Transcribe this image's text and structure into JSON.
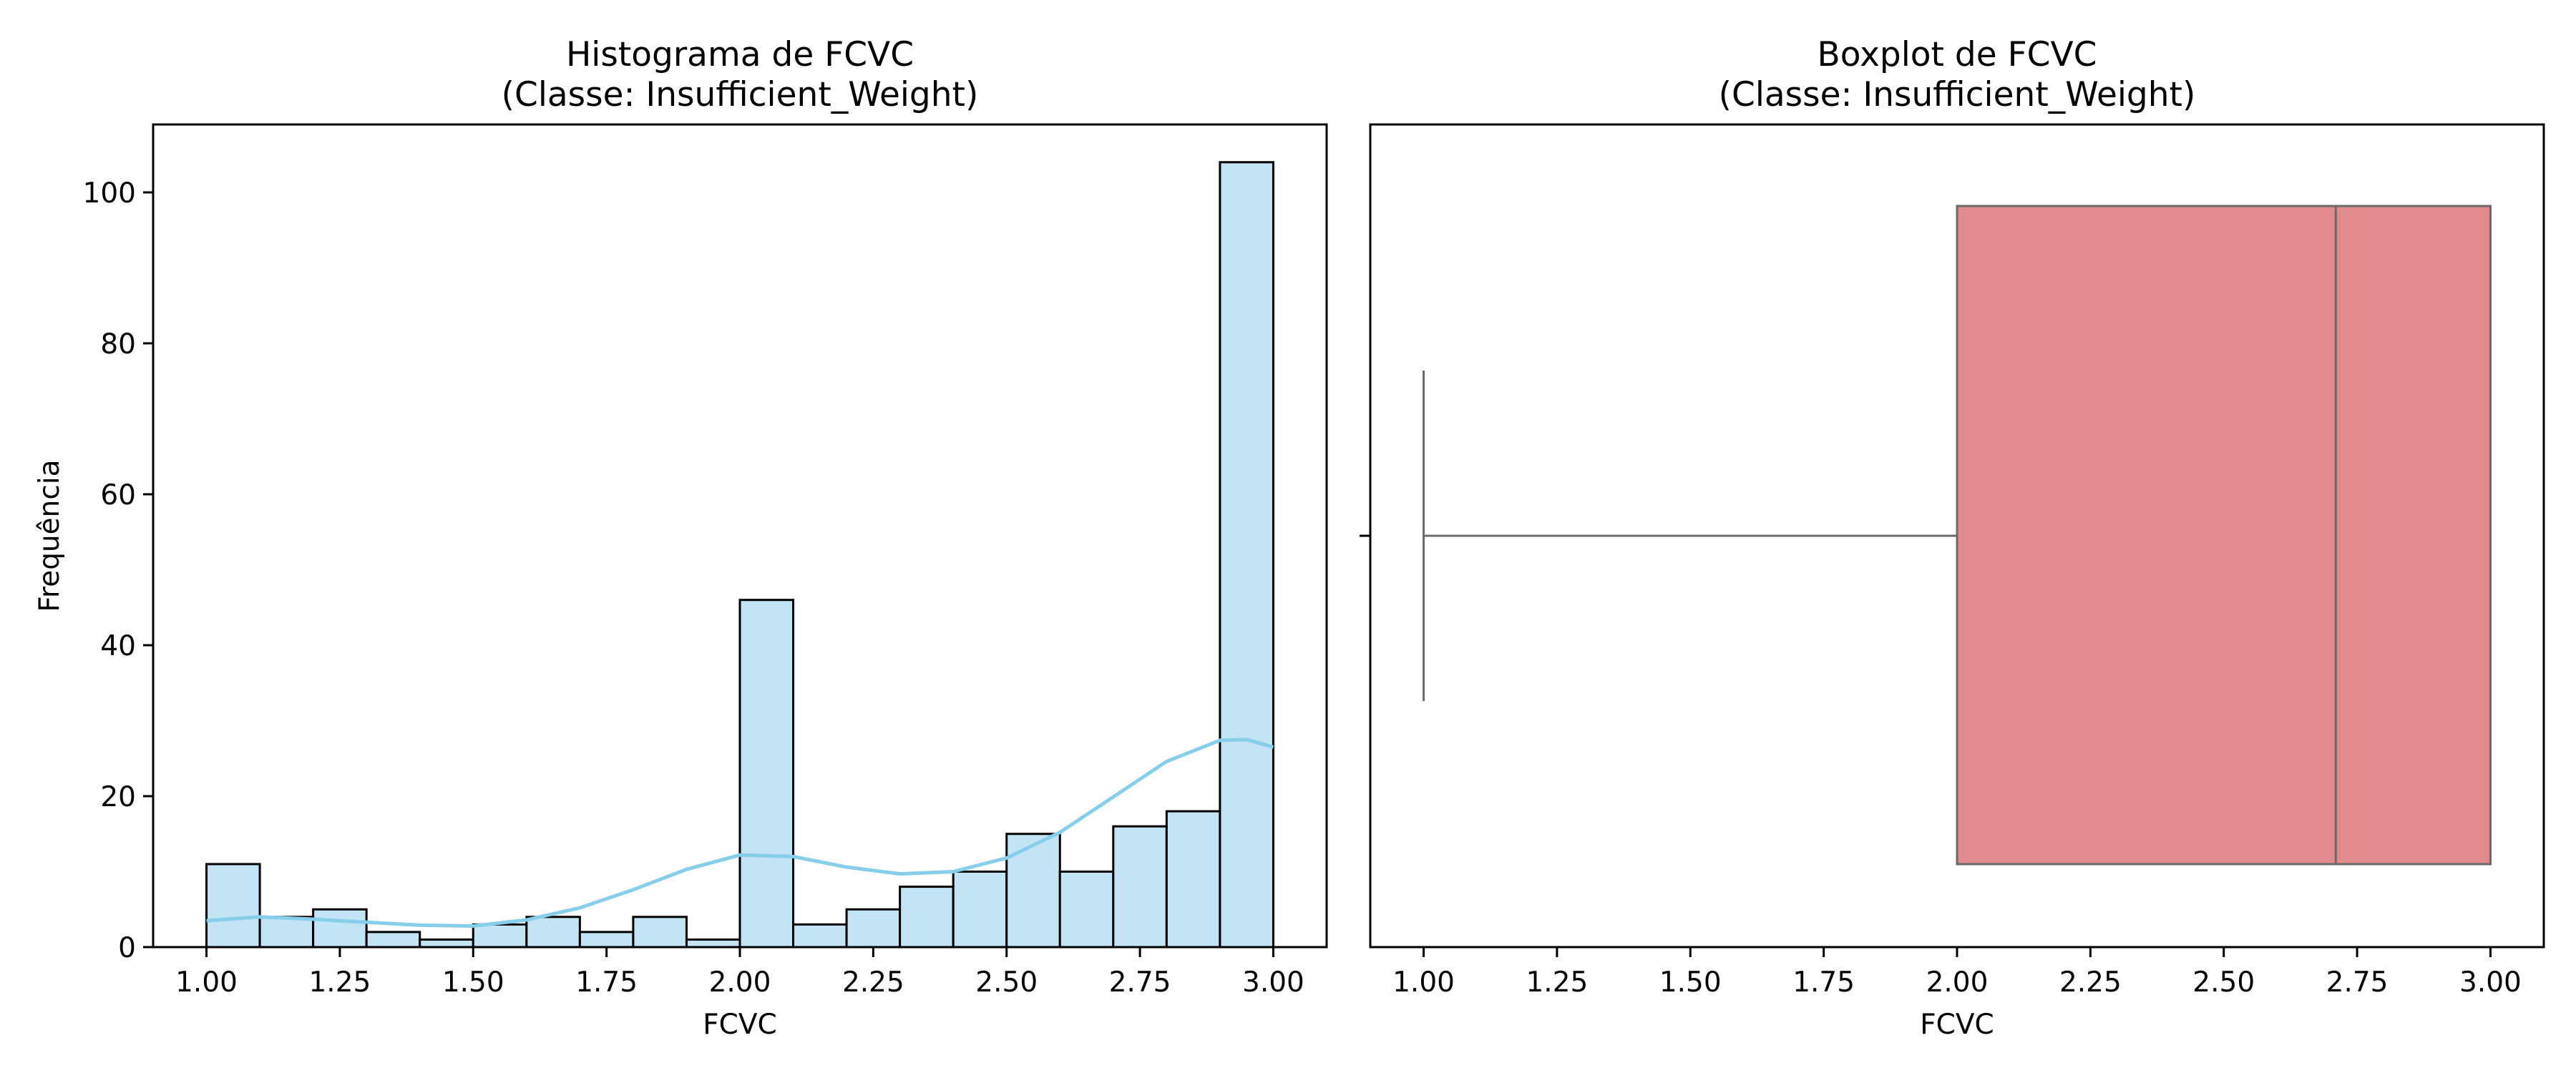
{
  "chart_data": [
    {
      "type": "bar",
      "subtype": "histogram",
      "title": "Histograma de FCVC",
      "subtitle": "(Classe: Insufficient_Weight)",
      "xlabel": "FCVC",
      "ylabel": "Frequência",
      "xlim": [
        0.9,
        3.1
      ],
      "ylim": [
        0,
        109
      ],
      "xticks": [
        "1.00",
        "1.25",
        "1.50",
        "1.75",
        "2.00",
        "2.25",
        "2.50",
        "2.75",
        "3.00"
      ],
      "yticks": [
        "0",
        "20",
        "40",
        "60",
        "80",
        "100"
      ],
      "bin_edges": [
        1.0,
        1.1,
        1.2,
        1.3,
        1.4,
        1.5,
        1.6,
        1.7,
        1.8,
        1.9,
        2.0,
        2.1,
        2.2,
        2.3,
        2.4,
        2.5,
        2.6,
        2.7,
        2.8,
        2.9,
        3.0
      ],
      "counts": [
        11,
        4,
        5,
        2,
        1,
        3,
        4,
        2,
        4,
        1,
        46,
        3,
        5,
        8,
        10,
        15,
        10,
        16,
        18,
        104
      ],
      "kde": {
        "x": [
          1.0,
          1.1,
          1.2,
          1.3,
          1.4,
          1.5,
          1.6,
          1.7,
          1.8,
          1.9,
          2.0,
          2.1,
          2.2,
          2.3,
          2.4,
          2.5,
          2.6,
          2.7,
          2.8,
          2.9,
          2.95,
          3.0
        ],
        "y": [
          3.5,
          4.0,
          3.7,
          3.3,
          2.9,
          2.8,
          3.6,
          5.2,
          7.6,
          10.3,
          12.2,
          12.0,
          10.6,
          9.7,
          10.0,
          11.8,
          15.2,
          19.9,
          24.6,
          27.4,
          27.5,
          26.5
        ]
      },
      "grid": false,
      "bar_color": "#c2e4f4",
      "line_color": "#87ceeb"
    },
    {
      "type": "boxplot",
      "title": "Boxplot de FCVC",
      "subtitle": "(Classe: Insufficient_Weight)",
      "xlabel": "FCVC",
      "xlim": [
        0.9,
        3.1
      ],
      "xticks": [
        "1.00",
        "1.25",
        "1.50",
        "1.75",
        "2.00",
        "2.25",
        "2.50",
        "2.75",
        "3.00"
      ],
      "whisker_low": 1.0,
      "q1": 2.0,
      "median": 2.71,
      "q3": 3.0,
      "whisker_high": 3.0,
      "grid": false,
      "box_color": "#e18b8e",
      "line_color": "#6a6a6a"
    }
  ]
}
